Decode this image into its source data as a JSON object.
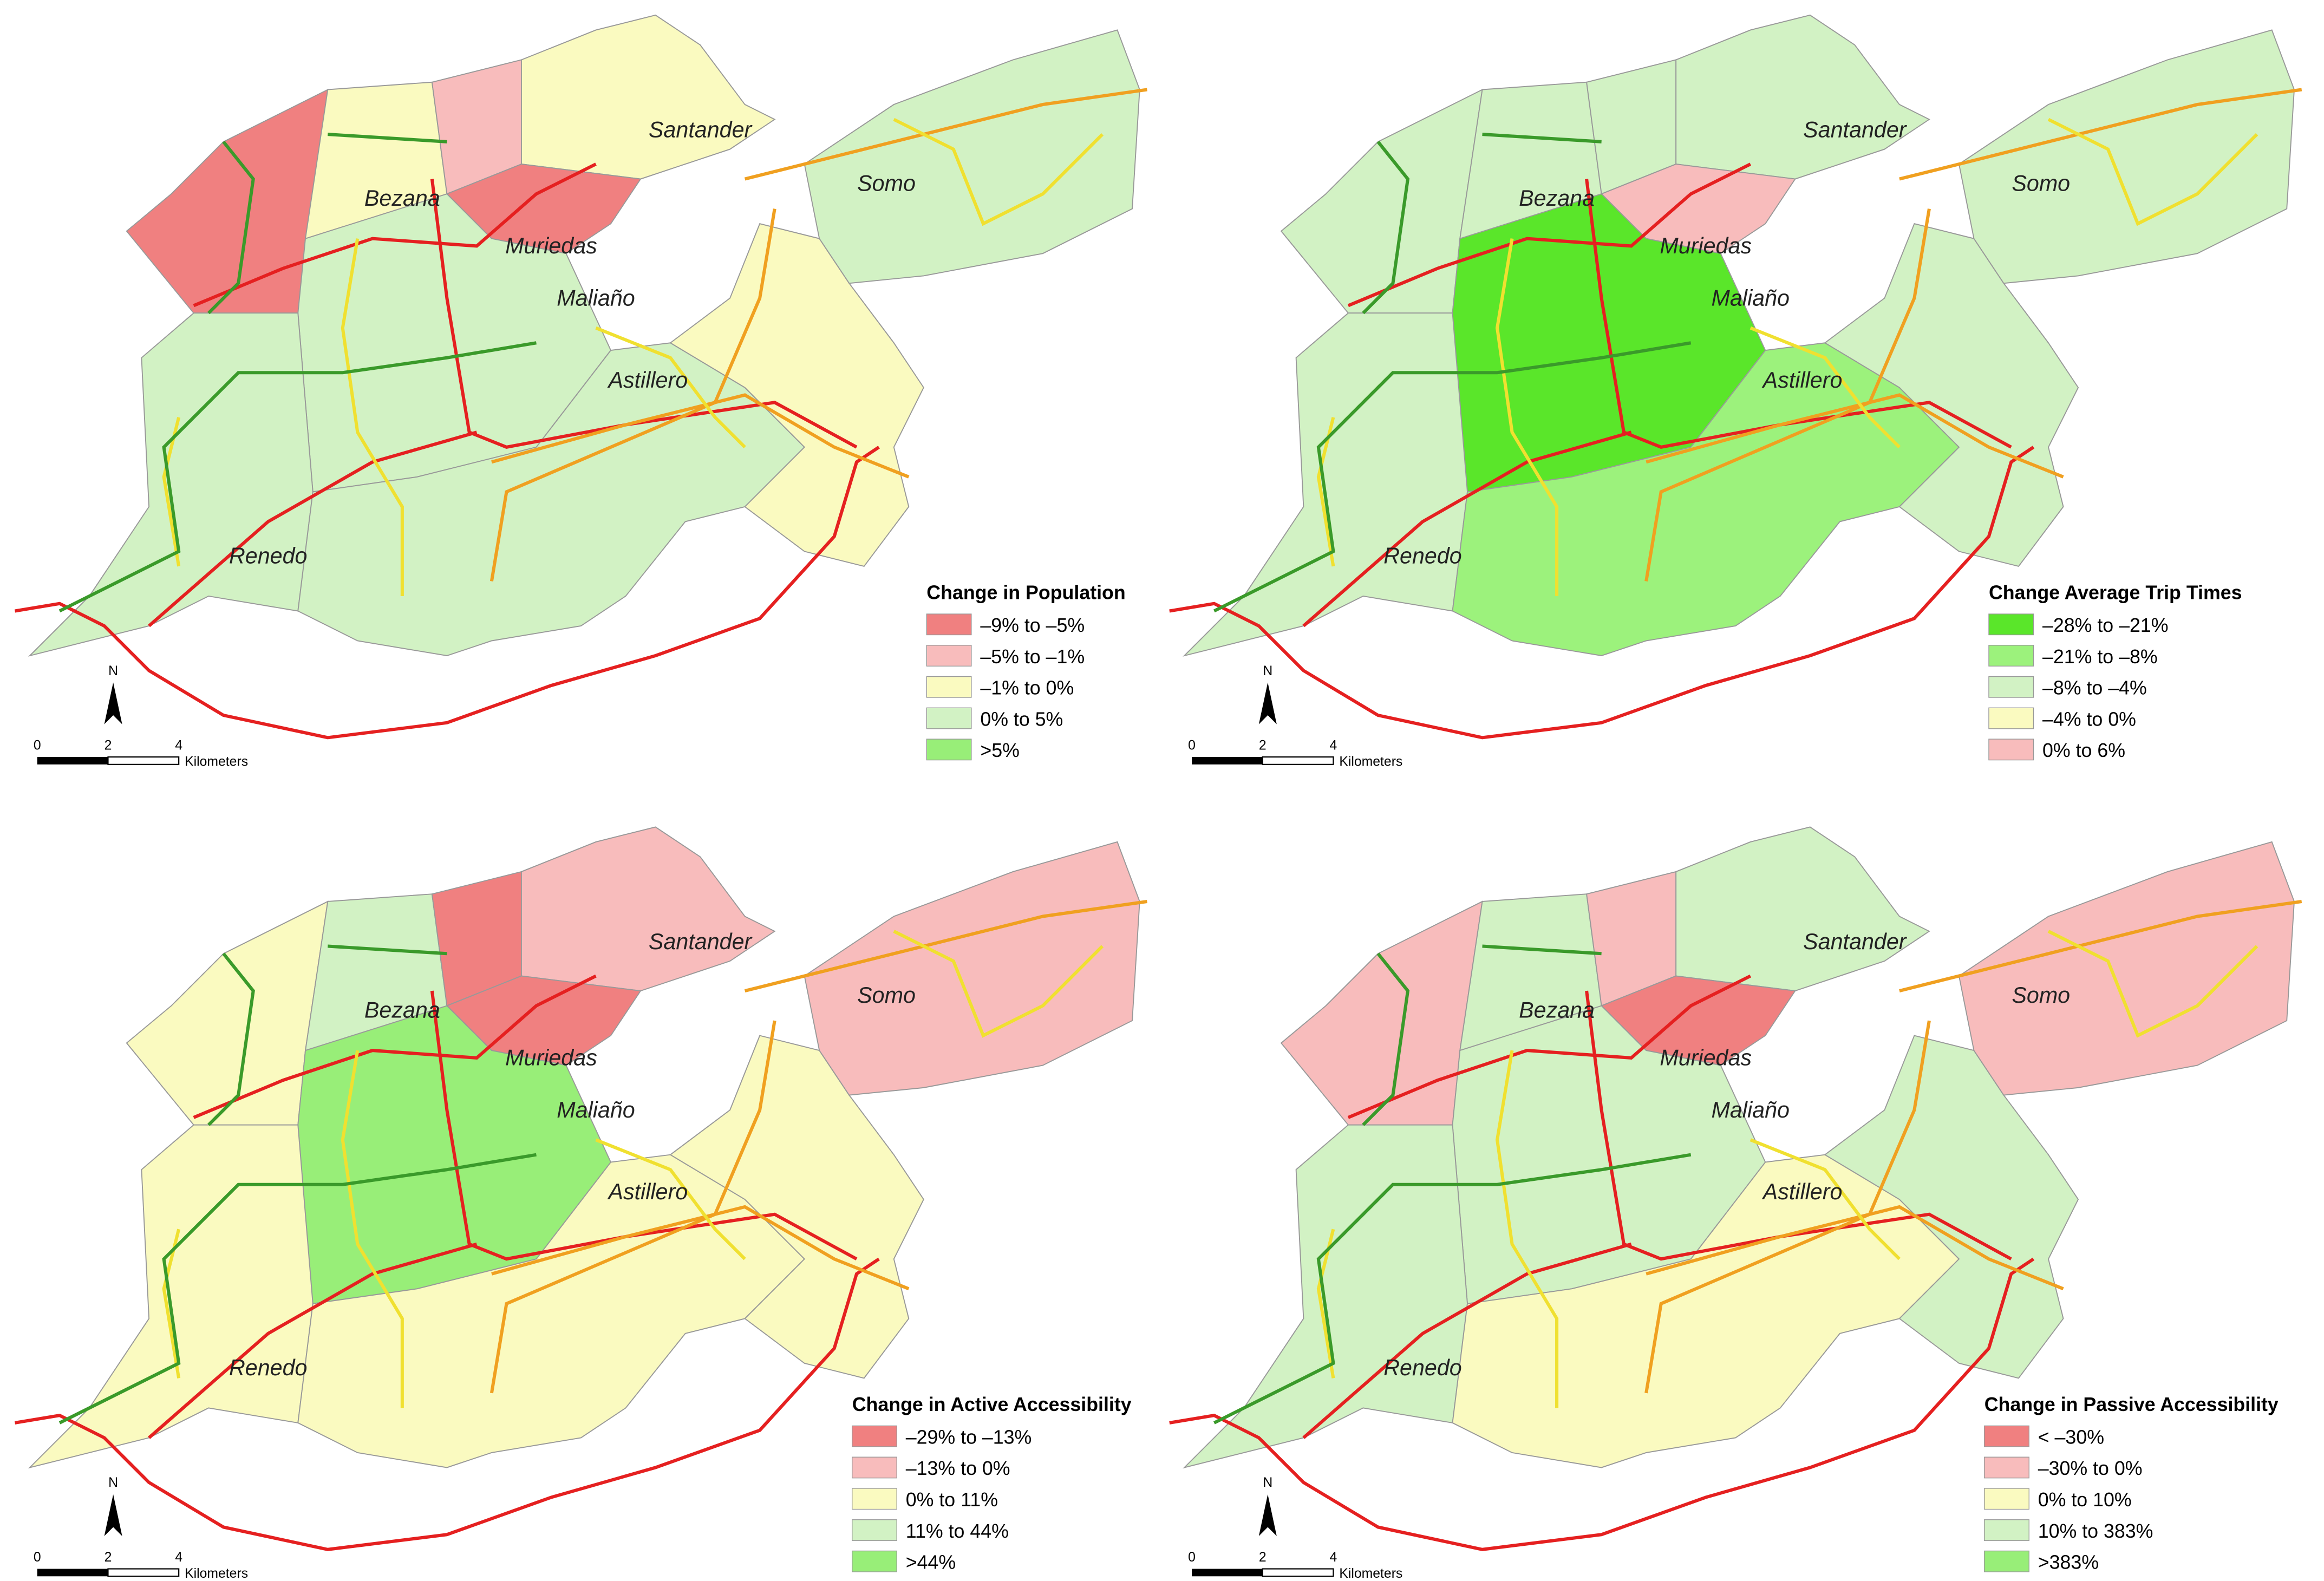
{
  "places": [
    "Santander",
    "Somo",
    "Bezana",
    "Muriedas",
    "Maliaño",
    "Astillero",
    "Renedo"
  ],
  "scale_bar": {
    "ticks": [
      0,
      2,
      4
    ],
    "unit": "Kilometers",
    "north": "N"
  },
  "panels": [
    {
      "title": "Change in Population",
      "legend": [
        {
          "label": "–9% to –5%",
          "color": "#f08080"
        },
        {
          "label": "–5% to –1%",
          "color": "#f8bcbc"
        },
        {
          "label": "–1% to 0%",
          "color": "#fafac0"
        },
        {
          "label": "0% to 5%",
          "color": "#d2f2c4"
        },
        {
          "label": ">5%",
          "color": "#98ee78"
        }
      ]
    },
    {
      "title": "Change Average Trip Times",
      "legend": [
        {
          "label": "–28% to –21%",
          "color": "#5ae62a"
        },
        {
          "label": "–21% to –8%",
          "color": "#9cf27c"
        },
        {
          "label": "–8% to –4%",
          "color": "#d2f2c4"
        },
        {
          "label": "–4% to 0%",
          "color": "#fafac0"
        },
        {
          "label": "0% to 6%",
          "color": "#f8bcbc"
        }
      ]
    },
    {
      "title": "Change in Active Accessibility",
      "legend": [
        {
          "label": "–29% to –13%",
          "color": "#f08080"
        },
        {
          "label": "–13% to 0%",
          "color": "#f8bcbc"
        },
        {
          "label": "0% to 11%",
          "color": "#fafac0"
        },
        {
          "label": "11% to 44%",
          "color": "#d2f2c4"
        },
        {
          "label": ">44%",
          "color": "#98ee78"
        }
      ]
    },
    {
      "title": "Change in Passive Accessibility",
      "legend": [
        {
          "label": "< –30%",
          "color": "#f08080"
        },
        {
          "label": "–30% to 0%",
          "color": "#f8bcbc"
        },
        {
          "label": "0% to 10%",
          "color": "#fafac0"
        },
        {
          "label": "10% to 383%",
          "color": "#d2f2c4"
        },
        {
          "label": ">383%",
          "color": "#98ee78"
        }
      ]
    }
  ]
}
